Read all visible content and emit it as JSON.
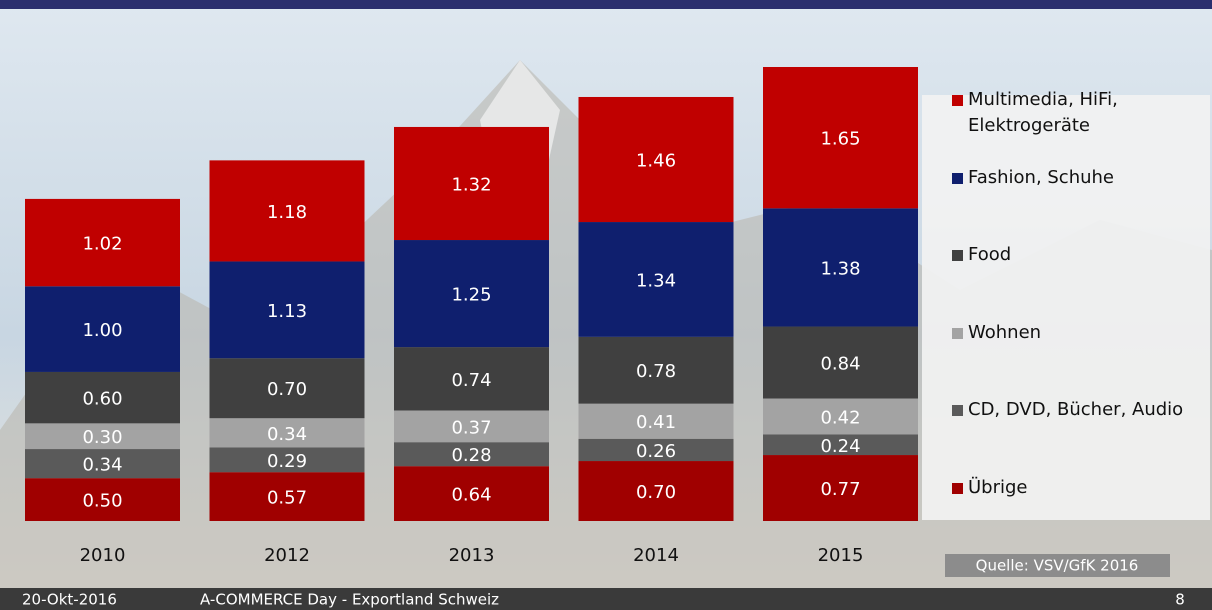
{
  "chart_data": {
    "type": "stacked-bar",
    "categories": [
      "2010",
      "2012",
      "2013",
      "2014",
      "2015"
    ],
    "series": [
      {
        "name": "Übrige",
        "color": "#a00000",
        "values": [
          0.5,
          0.57,
          0.64,
          0.7,
          0.77
        ],
        "value_labels": [
          "0.50",
          "0.57",
          "0.64",
          "0.70",
          "0.77"
        ]
      },
      {
        "name": "CD, DVD, Bücher, Audio",
        "color": "#5a5a5a",
        "values": [
          0.34,
          0.29,
          0.28,
          0.26,
          0.24
        ],
        "value_labels": [
          "0.34",
          "0.29",
          "0.28",
          "0.26",
          "0.24"
        ]
      },
      {
        "name": "Wohnen",
        "color": "#a3a3a3",
        "values": [
          0.3,
          0.34,
          0.37,
          0.41,
          0.42
        ],
        "value_labels": [
          "0.30",
          "0.34",
          "0.37",
          "0.41",
          "0.42"
        ]
      },
      {
        "name": "Food",
        "color": "#404040",
        "values": [
          0.6,
          0.7,
          0.74,
          0.78,
          0.84
        ],
        "value_labels": [
          "0.60",
          "0.70",
          "0.74",
          "0.78",
          "0.84"
        ]
      },
      {
        "name": "Fashion, Schuhe",
        "color": "#0f1f6e",
        "values": [
          1.0,
          1.13,
          1.25,
          1.34,
          1.38
        ],
        "value_labels": [
          "1.00",
          "1.13",
          "1.25",
          "1.34",
          "1.38"
        ]
      },
      {
        "name": "Multimedia, HiFi, Elektrogeräte",
        "color": "#c00000",
        "values": [
          1.02,
          1.18,
          1.32,
          1.46,
          1.65
        ],
        "value_labels": [
          "1.02",
          "1.18",
          "1.32",
          "1.46",
          "1.65"
        ]
      }
    ],
    "source": "Quelle: VSV/GfK 2016"
  },
  "footer": {
    "date": "20-Okt-2016",
    "event": "A-COMMERCE Day - Exportland Schweiz",
    "page": "8"
  }
}
